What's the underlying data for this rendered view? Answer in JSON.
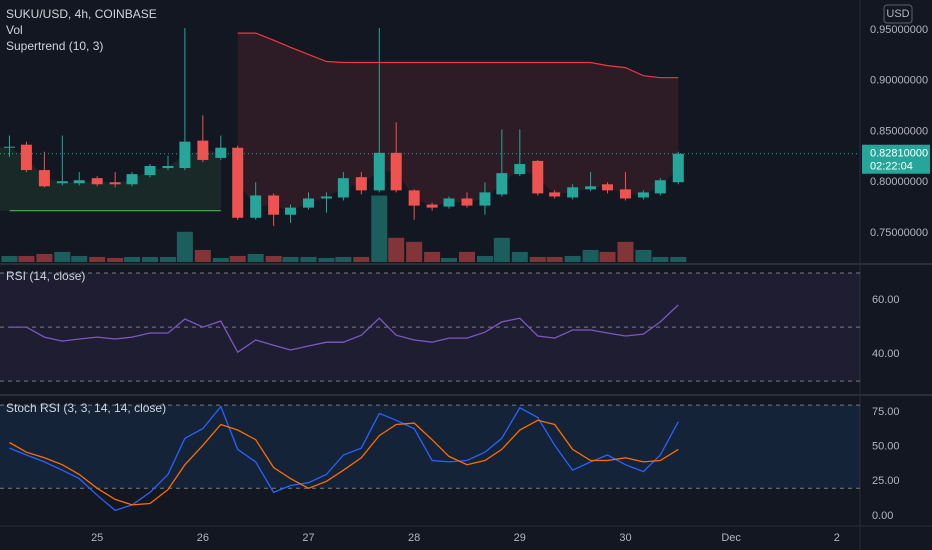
{
  "chart_data": [
    {
      "type": "candlestick",
      "title": "SUKU/USD, 4h, COINBASE",
      "unit": "USD",
      "x": [
        24.17,
        24.33,
        24.5,
        24.67,
        24.83,
        25,
        25.17,
        25.33,
        25.5,
        25.67,
        25.83,
        26,
        26.17,
        26.33,
        26.5,
        26.67,
        26.83,
        27,
        27.17,
        27.33,
        27.5,
        27.67,
        27.83,
        28,
        28.17,
        28.33,
        28.5,
        28.67,
        28.83,
        29,
        29.17,
        29.33,
        29.5,
        29.67,
        29.83,
        30,
        30.17,
        30.33,
        30.5
      ],
      "open": [
        0.834,
        0.837,
        0.812,
        0.799,
        0.799,
        0.804,
        0.8,
        0.798,
        0.807,
        0.814,
        0.814,
        0.841,
        0.824,
        0.834,
        0.765,
        0.787,
        0.768,
        0.775,
        0.784,
        0.785,
        0.805,
        0.792,
        0.829,
        0.792,
        0.778,
        0.776,
        0.784,
        0.777,
        0.788,
        0.808,
        0.821,
        0.79,
        0.785,
        0.793,
        0.798,
        0.793,
        0.785,
        0.789,
        0.8
      ],
      "high": [
        0.846,
        0.84,
        0.83,
        0.846,
        0.81,
        0.806,
        0.81,
        0.81,
        0.818,
        0.826,
        0.952,
        0.866,
        0.846,
        0.836,
        0.8,
        0.789,
        0.778,
        0.79,
        0.79,
        0.81,
        0.81,
        0.952,
        0.859,
        0.793,
        0.78,
        0.786,
        0.79,
        0.8,
        0.852,
        0.852,
        0.822,
        0.792,
        0.798,
        0.81,
        0.8,
        0.81,
        0.792,
        0.804,
        0.83
      ],
      "low": [
        0.825,
        0.81,
        0.795,
        0.797,
        0.797,
        0.796,
        0.795,
        0.796,
        0.805,
        0.812,
        0.812,
        0.82,
        0.822,
        0.763,
        0.763,
        0.757,
        0.76,
        0.773,
        0.77,
        0.782,
        0.788,
        0.79,
        0.79,
        0.763,
        0.772,
        0.774,
        0.775,
        0.768,
        0.786,
        0.806,
        0.787,
        0.784,
        0.783,
        0.791,
        0.789,
        0.782,
        0.783,
        0.787,
        0.798
      ],
      "close": [
        0.835,
        0.812,
        0.796,
        0.801,
        0.802,
        0.798,
        0.798,
        0.808,
        0.816,
        0.816,
        0.84,
        0.822,
        0.834,
        0.765,
        0.787,
        0.768,
        0.775,
        0.784,
        0.786,
        0.804,
        0.792,
        0.829,
        0.792,
        0.777,
        0.775,
        0.784,
        0.777,
        0.79,
        0.809,
        0.818,
        0.789,
        0.786,
        0.795,
        0.796,
        0.792,
        0.784,
        0.79,
        0.802,
        0.8281
      ],
      "colors": {
        "up": "#26a69a",
        "down": "#ef5350"
      },
      "xlim": [
        24.08,
        32.22
      ],
      "xticks": [
        25,
        26,
        27,
        28,
        29,
        30,
        {
          "value": 31,
          "label": "Dec"
        },
        {
          "value": 32,
          "label": "2"
        }
      ],
      "ylim": [
        0.7214,
        0.9796
      ],
      "yticks": [
        {
          "value": 0.95,
          "label": "0.95000000"
        },
        {
          "value": 0.9,
          "label": "0.90000000"
        },
        {
          "value": 0.85,
          "label": "0.85000000"
        },
        {
          "value": 0.8,
          "label": "0.80000000"
        },
        {
          "value": 0.75,
          "label": "0.75000000"
        }
      ],
      "last_price": {
        "value": 0.8281,
        "label": "0.82810000"
      },
      "countdown": "02:22:04"
    },
    {
      "type": "volume",
      "title": "Vol",
      "values": [
        6,
        6,
        8,
        10,
        6,
        5,
        4,
        5,
        5,
        5,
        30,
        12,
        4,
        6,
        8,
        6,
        5,
        5,
        4,
        5,
        5,
        66,
        24,
        20,
        10,
        4,
        10,
        6,
        24,
        10,
        5,
        5,
        6,
        12,
        10,
        20,
        12,
        5,
        5
      ],
      "ylim": [
        0,
        260
      ],
      "colors": {
        "up": "rgba(38,166,154,0.5)",
        "down": "rgba(239,83,80,0.5)"
      }
    },
    {
      "type": "supertrend",
      "title": "Supertrend (10, 3)",
      "series": [
        {
          "color": "#4caf50",
          "fill": "rgba(76,175,80,0.12)",
          "values": [
            0.772,
            0.772,
            0.772,
            0.772,
            0.772,
            0.772,
            0.772,
            0.772,
            0.772,
            0.772,
            0.772,
            0.772,
            0.772,
            null,
            null,
            null,
            null,
            null,
            null,
            null,
            null,
            null,
            null,
            null,
            null,
            null,
            null,
            null,
            null,
            null,
            null,
            null,
            null,
            null,
            null,
            null,
            null,
            null,
            null
          ]
        },
        {
          "color": "#f23645",
          "fill": "rgba(242,54,69,0.12)",
          "values": [
            null,
            null,
            null,
            null,
            null,
            null,
            null,
            null,
            null,
            null,
            null,
            null,
            null,
            0.947,
            0.947,
            0.94,
            0.933,
            0.926,
            0.919,
            0.918,
            0.918,
            0.918,
            0.918,
            0.918,
            0.918,
            0.918,
            0.918,
            0.918,
            0.918,
            0.918,
            0.918,
            0.918,
            0.918,
            0.918,
            0.915,
            0.913,
            0.905,
            0.903,
            0.903
          ]
        }
      ]
    },
    {
      "type": "line",
      "title": "RSI (14, close)",
      "series": [
        {
          "color": "#7e57c2",
          "values": [
            50,
            50,
            46.3,
            44.8,
            45.6,
            46.3,
            45.6,
            46.3,
            47.8,
            47.8,
            53,
            50,
            52.2,
            40.7,
            45.2,
            43.3,
            41.5,
            43,
            44.4,
            44.4,
            47,
            53.3,
            47,
            45.2,
            44.4,
            45.9,
            45.9,
            48.1,
            51.9,
            53.3,
            46.7,
            45.9,
            48.9,
            48.9,
            47.8,
            46.7,
            47.4,
            51.9,
            58.2
          ]
        }
      ],
      "ylim": [
        25.6,
        72.6
      ],
      "yticks": [
        {
          "value": 60,
          "label": "60.00"
        },
        {
          "value": 40,
          "label": "40.00"
        }
      ],
      "bands": [
        70,
        50,
        30
      ],
      "band_fill": "rgba(126,87,194,0.1)"
    },
    {
      "type": "line",
      "title": "Stoch RSI (3, 3, 14, 14, close)",
      "series": [
        {
          "color": "#2962ff",
          "values": [
            49,
            44,
            39,
            33,
            27,
            15,
            4,
            8,
            17,
            30,
            56,
            63,
            79,
            48,
            39,
            17,
            22,
            24,
            30,
            44,
            49,
            74,
            69,
            63,
            40,
            39,
            40,
            46,
            56,
            78,
            71,
            51,
            33,
            39,
            44,
            37,
            32,
            44,
            68
          ]
        },
        {
          "color": "#ff6d00",
          "values": [
            53,
            46,
            42,
            37,
            30,
            20,
            12,
            8,
            9,
            19,
            37,
            51,
            66,
            62,
            55,
            35,
            27,
            20,
            25,
            33,
            42,
            58,
            66,
            67,
            55,
            43,
            37,
            40,
            48,
            62,
            69,
            66,
            48,
            40,
            40,
            42,
            39,
            40,
            48
          ]
        }
      ],
      "ylim": [
        -6.5,
        85.1
      ],
      "yticks": [
        {
          "value": 75,
          "label": "75.00"
        },
        {
          "value": 50,
          "label": "50.00"
        },
        {
          "value": 25,
          "label": "25.00"
        },
        {
          "value": 0,
          "label": "0.00"
        }
      ],
      "bands": [
        80,
        20
      ],
      "band_fill": "rgba(33,150,243,0.1)"
    }
  ]
}
